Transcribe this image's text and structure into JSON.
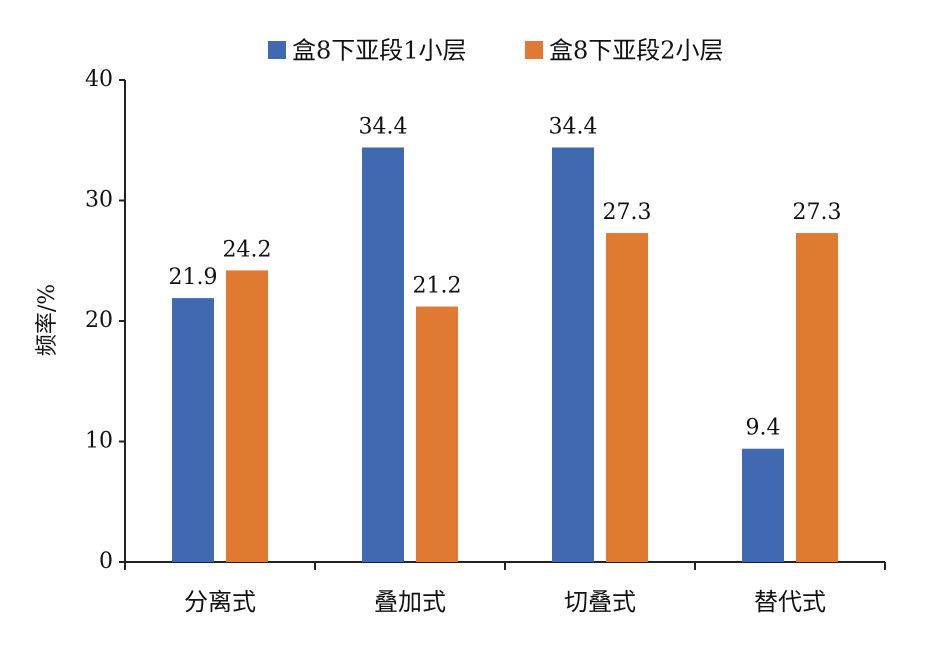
{
  "chart_data": {
    "type": "bar",
    "title": "",
    "xlabel": "",
    "ylabel": "频率/%",
    "categories": [
      "分离式",
      "叠加式",
      "切叠式",
      "替代式"
    ],
    "series": [
      {
        "name": "盒8下亚段1小层",
        "color": "#4169b2",
        "values": [
          21.9,
          34.4,
          34.4,
          9.4
        ]
      },
      {
        "name": "盒8下亚段2小层",
        "color": "#e07a32",
        "values": [
          24.2,
          21.2,
          27.3,
          27.3
        ]
      }
    ],
    "ylim": [
      0,
      40
    ],
    "yticks": [
      0,
      10,
      20,
      30,
      40
    ],
    "grid": false,
    "legend_position": "top"
  }
}
